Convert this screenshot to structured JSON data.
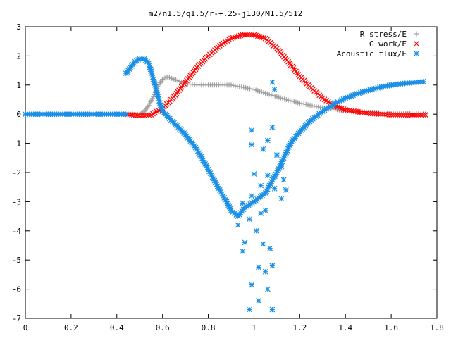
{
  "chart_data": {
    "type": "scatter",
    "title": "m2/n1.5/q1.5/r-+.25-j130/M1.5/512",
    "xlim": [
      0,
      1.8
    ],
    "ylim": [
      -7,
      3
    ],
    "xticks": [
      "0",
      "0.2",
      "0.4",
      "0.6",
      "0.8",
      "1",
      "1.2",
      "1.4",
      "1.6",
      "1.8"
    ],
    "yticks": [
      "3",
      "2",
      "1",
      "0",
      "-1",
      "-2",
      "-3",
      "-4",
      "-5",
      "-6",
      "-7"
    ],
    "grid": false,
    "legend_position": "top-right",
    "series": [
      {
        "name": "R stress/E",
        "marker": "plus",
        "color": "#a0a0a0",
        "points": [
          [
            0.45,
            0.0
          ],
          [
            0.5,
            0.0
          ],
          [
            0.52,
            0.1
          ],
          [
            0.54,
            0.3
          ],
          [
            0.56,
            0.6
          ],
          [
            0.58,
            0.95
          ],
          [
            0.6,
            1.2
          ],
          [
            0.62,
            1.28
          ],
          [
            0.65,
            1.2
          ],
          [
            0.7,
            1.05
          ],
          [
            0.75,
            1.0
          ],
          [
            0.8,
            1.0
          ],
          [
            0.9,
            1.0
          ],
          [
            1.0,
            0.85
          ],
          [
            1.05,
            0.72
          ],
          [
            1.1,
            0.6
          ],
          [
            1.15,
            0.48
          ],
          [
            1.2,
            0.38
          ],
          [
            1.3,
            0.22
          ],
          [
            1.4,
            0.12
          ],
          [
            1.5,
            0.07
          ],
          [
            1.6,
            0.04
          ],
          [
            1.7,
            0.02
          ],
          [
            1.75,
            0.01
          ]
        ]
      },
      {
        "name": "G work/E",
        "marker": "cross",
        "color": "#ff0000",
        "points": [
          [
            0.44,
            0.0
          ],
          [
            0.5,
            -0.05
          ],
          [
            0.55,
            -0.02
          ],
          [
            0.6,
            0.2
          ],
          [
            0.65,
            0.6
          ],
          [
            0.7,
            1.1
          ],
          [
            0.75,
            1.6
          ],
          [
            0.8,
            2.0
          ],
          [
            0.85,
            2.35
          ],
          [
            0.9,
            2.6
          ],
          [
            0.95,
            2.72
          ],
          [
            1.0,
            2.72
          ],
          [
            1.05,
            2.6
          ],
          [
            1.1,
            2.25
          ],
          [
            1.15,
            1.8
          ],
          [
            1.2,
            1.3
          ],
          [
            1.25,
            0.9
          ],
          [
            1.3,
            0.55
          ],
          [
            1.35,
            0.3
          ],
          [
            1.4,
            0.15
          ],
          [
            1.5,
            0.03
          ],
          [
            1.6,
            -0.02
          ],
          [
            1.7,
            -0.03
          ],
          [
            1.75,
            -0.02
          ]
        ]
      },
      {
        "name": "Acoustic flux/E",
        "marker": "star",
        "color": "#1a8fe6",
        "points": [
          [
            0.0,
            0.0
          ],
          [
            0.1,
            0.0
          ],
          [
            0.2,
            0.0
          ],
          [
            0.3,
            0.0
          ],
          [
            0.4,
            0.0
          ],
          [
            0.44,
            0.0
          ],
          [
            0.44,
            1.4
          ],
          [
            0.46,
            1.6
          ],
          [
            0.48,
            1.8
          ],
          [
            0.5,
            1.9
          ],
          [
            0.52,
            1.9
          ],
          [
            0.54,
            1.75
          ],
          [
            0.56,
            1.2
          ],
          [
            0.58,
            0.6
          ],
          [
            0.6,
            0.1
          ],
          [
            0.65,
            -0.3
          ],
          [
            0.7,
            -0.7
          ],
          [
            0.75,
            -1.2
          ],
          [
            0.8,
            -1.9
          ],
          [
            0.85,
            -2.6
          ],
          [
            0.88,
            -3.0
          ],
          [
            0.9,
            -3.3
          ],
          [
            0.93,
            -3.5
          ],
          [
            0.96,
            -3.2
          ],
          [
            1.0,
            -3.0
          ],
          [
            1.05,
            -2.7
          ],
          [
            1.1,
            -2.0
          ],
          [
            1.13,
            -1.5
          ],
          [
            1.16,
            -1.0
          ],
          [
            1.2,
            -0.6
          ],
          [
            1.25,
            -0.2
          ],
          [
            1.3,
            0.1
          ],
          [
            1.35,
            0.35
          ],
          [
            1.4,
            0.55
          ],
          [
            1.45,
            0.7
          ],
          [
            1.5,
            0.82
          ],
          [
            1.55,
            0.92
          ],
          [
            1.6,
            1.0
          ],
          [
            1.65,
            1.05
          ],
          [
            1.7,
            1.08
          ],
          [
            1.74,
            1.12
          ],
          [
            0.98,
            -6.7
          ],
          [
            1.02,
            -6.4
          ],
          [
            1.08,
            -6.7
          ],
          [
            0.99,
            -5.85
          ],
          [
            1.06,
            -6.0
          ],
          [
            1.05,
            -5.4
          ],
          [
            1.02,
            -5.25
          ],
          [
            1.08,
            -5.2
          ],
          [
            0.95,
            -4.7
          ],
          [
            1.04,
            -4.45
          ],
          [
            1.07,
            -4.6
          ],
          [
            0.96,
            -4.4
          ],
          [
            1.01,
            -4.0
          ],
          [
            0.93,
            -3.8
          ],
          [
            0.98,
            -3.6
          ],
          [
            1.03,
            -3.4
          ],
          [
            0.95,
            -3.05
          ],
          [
            1.05,
            -3.3
          ],
          [
            0.99,
            -2.8
          ],
          [
            1.09,
            -2.55
          ],
          [
            1.03,
            -2.45
          ],
          [
            1.0,
            -2.05
          ],
          [
            1.06,
            -2.1
          ],
          [
            1.12,
            -1.8
          ],
          [
            1.04,
            -1.2
          ],
          [
            1.1,
            -1.4
          ],
          [
            0.99,
            -1.05
          ],
          [
            1.06,
            -0.9
          ],
          [
            1.08,
            -0.45
          ],
          [
            0.99,
            -0.55
          ],
          [
            1.08,
            1.1
          ],
          [
            1.09,
            0.85
          ],
          [
            1.12,
            -2.9
          ],
          [
            1.14,
            -2.6
          ],
          [
            1.13,
            -2.25
          ]
        ]
      }
    ]
  }
}
